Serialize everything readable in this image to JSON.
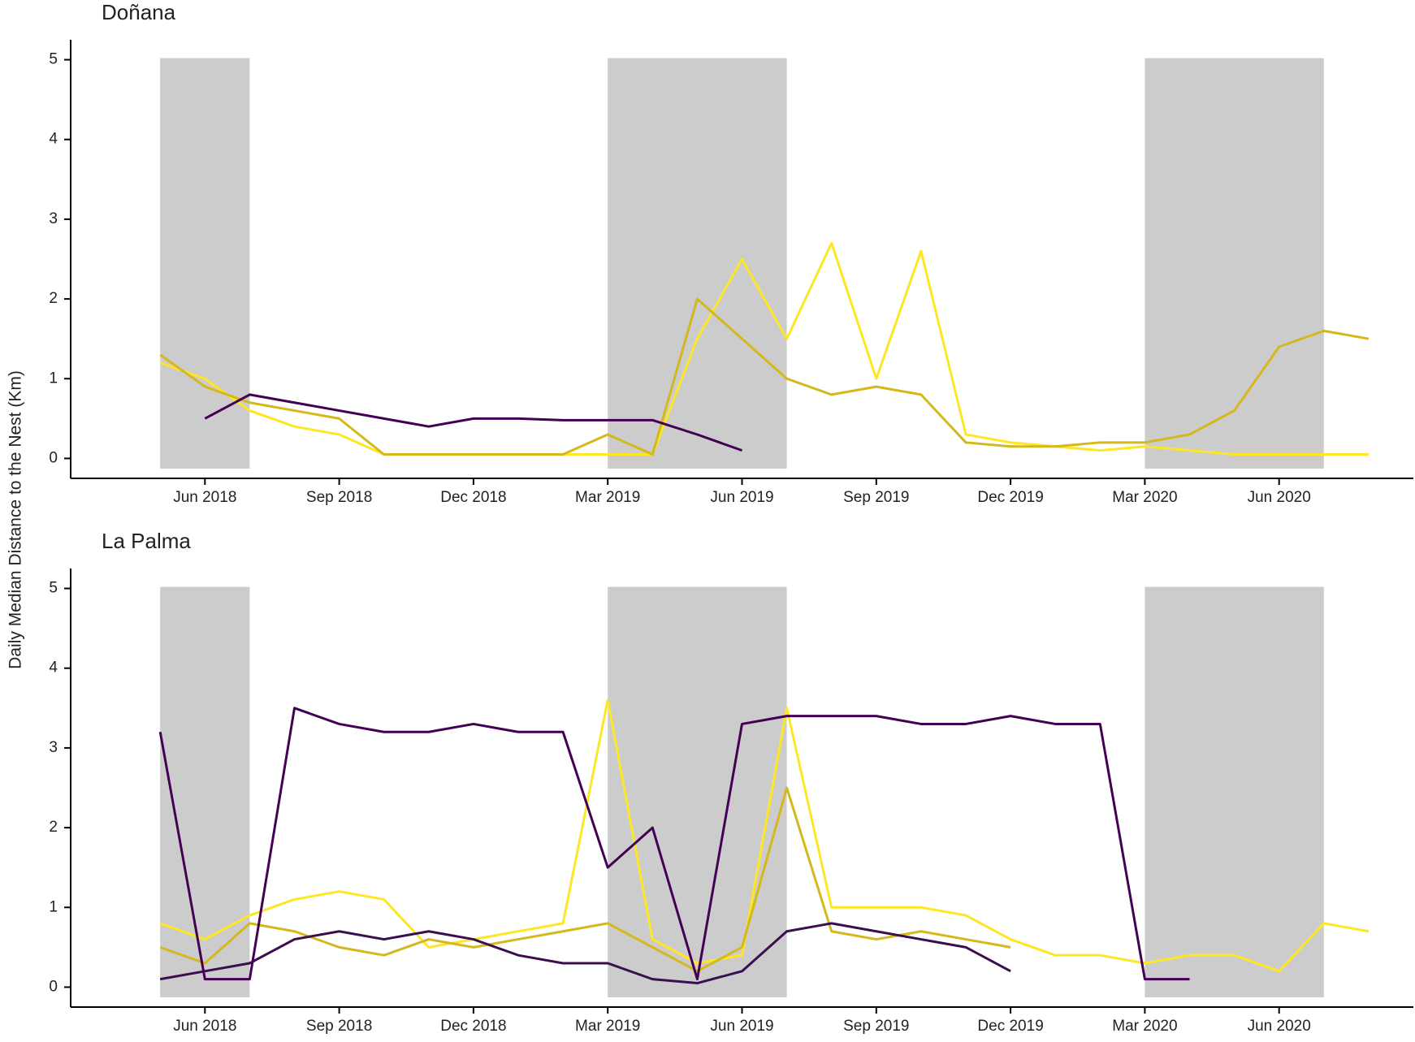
{
  "chart_data": [
    {
      "type": "line",
      "title": "Doñana",
      "y_label": "Daily Median Distance to the Nest (Km)",
      "x": [
        "2018-05",
        "2018-06",
        "2018-07",
        "2018-08",
        "2018-09",
        "2018-10",
        "2018-11",
        "2018-12",
        "2019-01",
        "2019-02",
        "2019-03",
        "2019-04",
        "2019-05",
        "2019-06",
        "2019-07",
        "2019-08",
        "2019-09",
        "2019-10",
        "2019-11",
        "2019-12",
        "2020-01",
        "2020-02",
        "2020-03",
        "2020-04",
        "2020-05",
        "2020-06",
        "2020-07",
        "2020-08"
      ],
      "xlim": [
        "2018-03",
        "2020-09"
      ],
      "xticks": [
        {
          "value": "2018-06",
          "label": "Jun 2018"
        },
        {
          "value": "2018-09",
          "label": "Sep 2018"
        },
        {
          "value": "2018-12",
          "label": "Dec 2018"
        },
        {
          "value": "2019-03",
          "label": "Mar 2019"
        },
        {
          "value": "2019-06",
          "label": "Jun 2019"
        },
        {
          "value": "2019-09",
          "label": "Sep 2019"
        },
        {
          "value": "2019-12",
          "label": "Dec 2019"
        },
        {
          "value": "2020-03",
          "label": "Mar 2020"
        },
        {
          "value": "2020-06",
          "label": "Jun 2020"
        }
      ],
      "ylim": [
        -0.25,
        5.25
      ],
      "yticks": [
        0,
        1,
        2,
        3,
        4,
        5
      ],
      "shaded_periods": [
        [
          "2018-05",
          "2018-07"
        ],
        [
          "2019-03",
          "2019-07"
        ],
        [
          "2020-03",
          "2020-07"
        ]
      ],
      "shade_color": "#cccccc",
      "series": [
        {
          "color": "#fde725",
          "values": [
            1.2,
            1.0,
            0.6,
            0.4,
            0.3,
            0.05,
            0.05,
            0.05,
            0.05,
            0.05,
            0.05,
            0.05,
            1.5,
            2.5,
            1.5,
            2.7,
            1.0,
            2.6,
            0.3,
            0.2,
            0.15,
            0.1,
            0.15,
            0.1,
            0.05,
            0.05,
            0.05,
            0.05
          ]
        },
        {
          "color": "#d4b81c",
          "values": [
            1.3,
            0.9,
            0.7,
            0.6,
            0.5,
            0.05,
            0.05,
            0.05,
            0.05,
            0.05,
            0.3,
            0.05,
            2.0,
            1.5,
            1.0,
            0.8,
            0.9,
            0.8,
            0.2,
            0.15,
            0.15,
            0.2,
            0.2,
            0.3,
            0.6,
            1.4,
            1.6,
            1.5
          ]
        },
        {
          "color": "#440154",
          "values": [
            null,
            0.5,
            0.8,
            0.7,
            0.6,
            0.5,
            0.4,
            0.5,
            0.5,
            0.48,
            0.48,
            0.48,
            0.3,
            0.1,
            null,
            null,
            null,
            null,
            null,
            null,
            null,
            null,
            null,
            null,
            null,
            null,
            null,
            null
          ]
        }
      ]
    },
    {
      "type": "line",
      "title": "La Palma",
      "x": [
        "2018-05",
        "2018-06",
        "2018-07",
        "2018-08",
        "2018-09",
        "2018-10",
        "2018-11",
        "2018-12",
        "2019-01",
        "2019-02",
        "2019-03",
        "2019-04",
        "2019-05",
        "2019-06",
        "2019-07",
        "2019-08",
        "2019-09",
        "2019-10",
        "2019-11",
        "2019-12",
        "2020-01",
        "2020-02",
        "2020-03",
        "2020-04",
        "2020-05",
        "2020-06",
        "2020-07",
        "2020-08"
      ],
      "xlim": [
        "2018-03",
        "2020-09"
      ],
      "xticks": [
        {
          "value": "2018-06",
          "label": "Jun 2018"
        },
        {
          "value": "2018-09",
          "label": "Sep 2018"
        },
        {
          "value": "2018-12",
          "label": "Dec 2018"
        },
        {
          "value": "2019-03",
          "label": "Mar 2019"
        },
        {
          "value": "2019-06",
          "label": "Jun 2019"
        },
        {
          "value": "2019-09",
          "label": "Sep 2019"
        },
        {
          "value": "2019-12",
          "label": "Dec 2019"
        },
        {
          "value": "2020-03",
          "label": "Mar 2020"
        },
        {
          "value": "2020-06",
          "label": "Jun 2020"
        }
      ],
      "ylim": [
        -0.25,
        5.25
      ],
      "yticks": [
        0,
        1,
        2,
        3,
        4,
        5
      ],
      "shaded_periods": [
        [
          "2018-05",
          "2018-07"
        ],
        [
          "2019-03",
          "2019-07"
        ],
        [
          "2020-03",
          "2020-07"
        ]
      ],
      "shade_color": "#cccccc",
      "series": [
        {
          "color": "#fde725",
          "values": [
            0.8,
            0.6,
            0.9,
            1.1,
            1.2,
            1.1,
            0.5,
            0.6,
            0.7,
            0.8,
            3.6,
            0.6,
            0.3,
            0.4,
            3.5,
            1.0,
            1.0,
            1.0,
            0.9,
            0.6,
            0.4,
            0.4,
            0.3,
            0.4,
            0.4,
            0.2,
            0.8,
            0.7
          ]
        },
        {
          "color": "#d4b81c",
          "values": [
            0.5,
            0.3,
            0.8,
            0.7,
            0.5,
            0.4,
            0.6,
            0.5,
            0.6,
            0.7,
            0.8,
            0.5,
            0.2,
            0.5,
            2.5,
            0.7,
            0.6,
            0.7,
            0.6,
            0.5,
            null,
            null,
            null,
            null,
            null,
            null,
            null,
            null
          ]
        },
        {
          "color": "#440154",
          "values": [
            3.2,
            0.1,
            0.1,
            3.5,
            3.3,
            3.2,
            3.2,
            3.3,
            3.2,
            3.2,
            1.5,
            2.0,
            0.1,
            3.3,
            3.4,
            3.4,
            3.4,
            3.3,
            3.3,
            3.4,
            3.3,
            3.3,
            0.1,
            0.1,
            null,
            null,
            null,
            null
          ]
        },
        {
          "color": "#3b0f4f",
          "values": [
            0.1,
            0.2,
            0.3,
            0.6,
            0.7,
            0.6,
            0.7,
            0.6,
            0.4,
            0.3,
            0.3,
            0.1,
            0.05,
            0.2,
            0.7,
            0.8,
            0.7,
            0.6,
            0.5,
            0.2,
            null,
            null,
            null,
            null,
            null,
            null,
            null,
            null
          ]
        }
      ]
    }
  ]
}
